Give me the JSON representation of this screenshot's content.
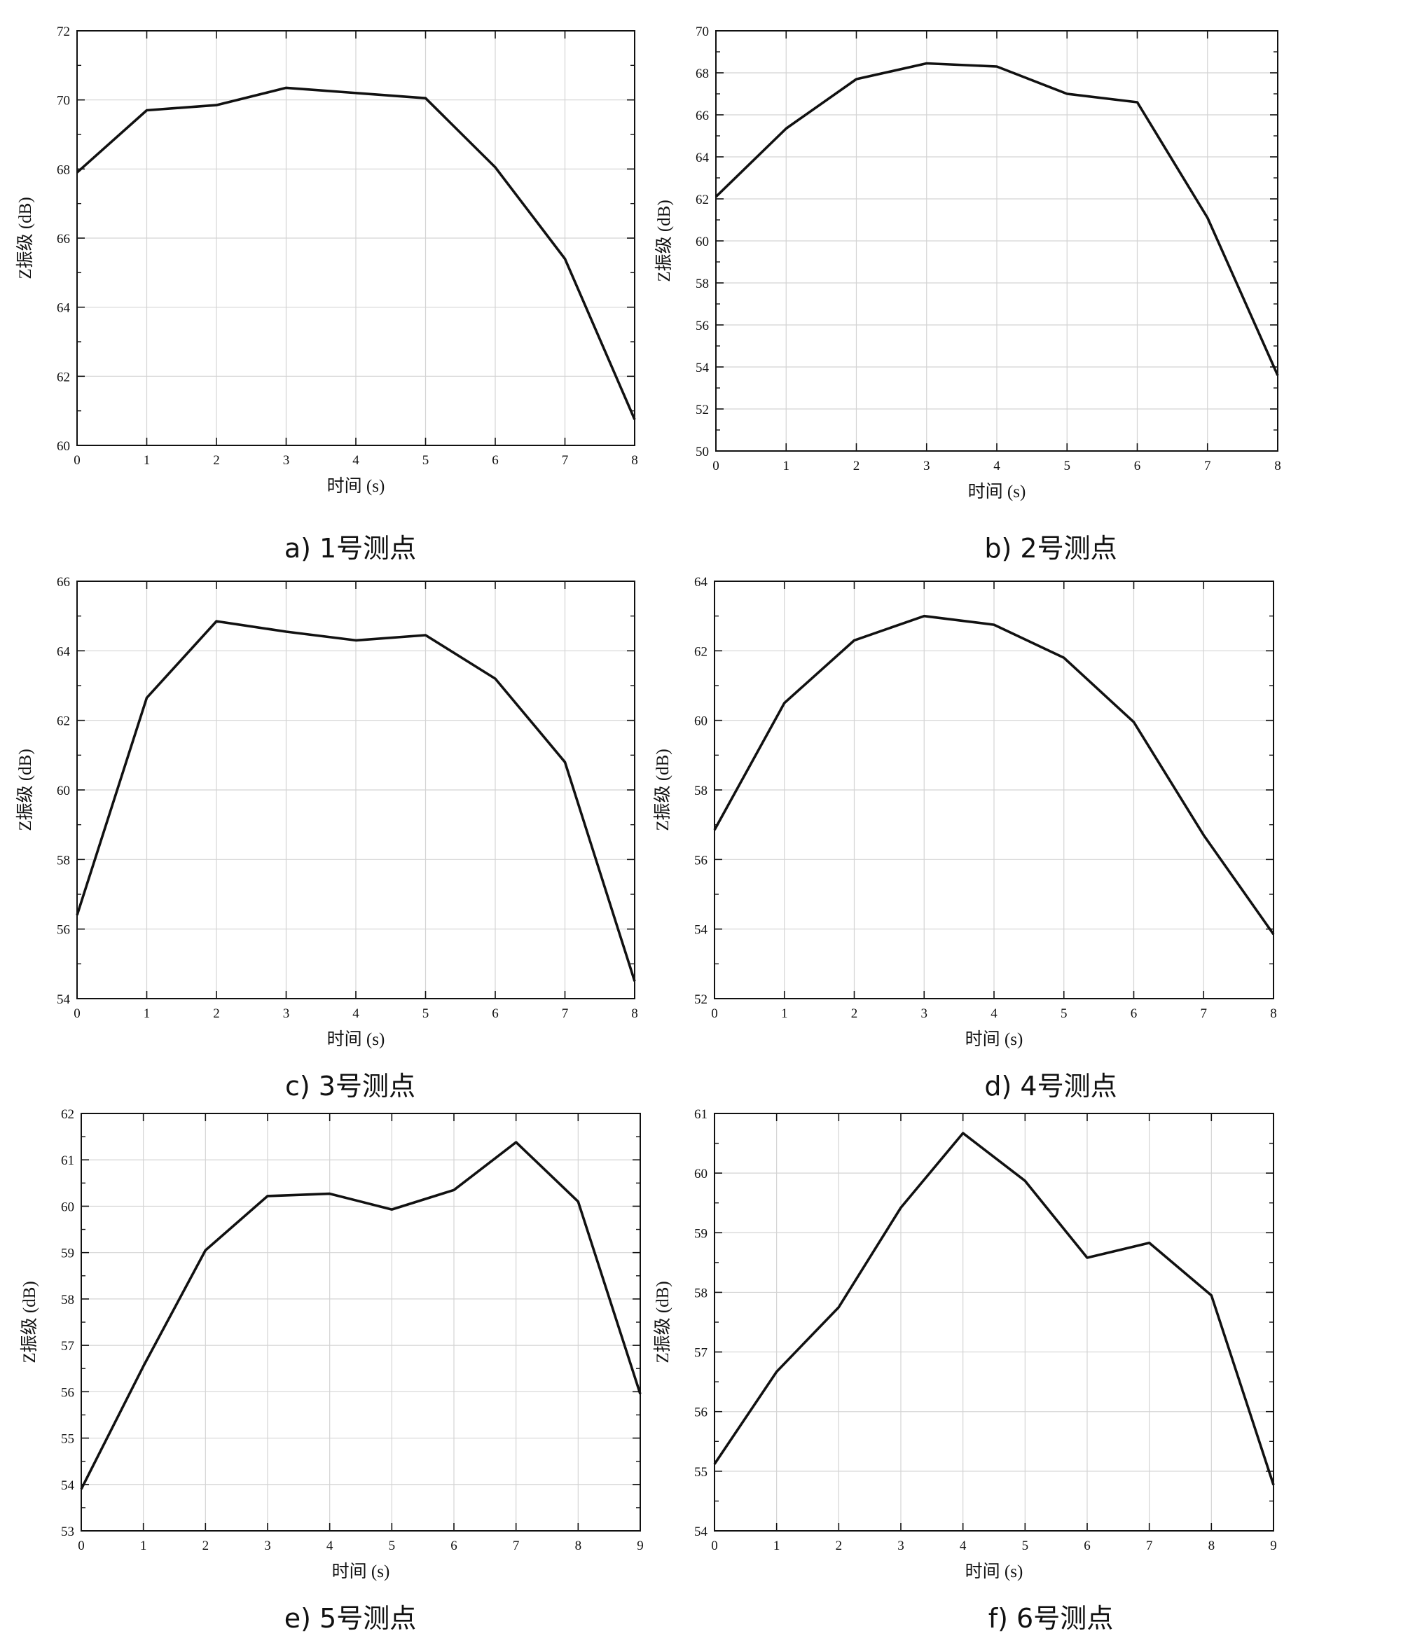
{
  "chart_data": [
    {
      "type": "line",
      "caption": "a) 1号测点",
      "xlabel": "时间 (s)",
      "ylabel": "Z振级 (dB)",
      "xlim": [
        0,
        8
      ],
      "ylim": [
        60,
        72
      ],
      "xticks": [
        0,
        1,
        2,
        3,
        4,
        5,
        6,
        7,
        8
      ],
      "yticks": [
        60,
        62,
        64,
        66,
        68,
        70,
        72
      ],
      "grid": true,
      "series": [
        {
          "x": [
            0,
            1,
            2,
            3,
            5,
            6,
            7,
            8
          ],
          "values": [
            67.9,
            69.7,
            69.85,
            70.35,
            70.05,
            68.05,
            65.4,
            60.75
          ]
        }
      ]
    },
    {
      "type": "line",
      "caption": "b) 2号测点",
      "xlabel": "时间 (s)",
      "ylabel": "Z振级 (dB)",
      "xlim": [
        0,
        8
      ],
      "ylim": [
        50,
        70
      ],
      "xticks": [
        0,
        1,
        2,
        3,
        4,
        5,
        6,
        7,
        8
      ],
      "yticks": [
        50,
        52,
        54,
        56,
        58,
        60,
        62,
        64,
        66,
        68,
        70
      ],
      "grid": true,
      "series": [
        {
          "x": [
            0,
            1,
            2,
            3,
            4,
            5,
            6,
            7,
            8
          ],
          "values": [
            62.1,
            65.35,
            67.7,
            68.45,
            68.3,
            67.0,
            66.6,
            61.1,
            53.6
          ]
        }
      ]
    },
    {
      "type": "line",
      "caption": "c) 3号测点",
      "xlabel": "时间 (s)",
      "ylabel": "Z振级 (dB)",
      "xlim": [
        0,
        8
      ],
      "ylim": [
        54,
        66
      ],
      "xticks": [
        0,
        1,
        2,
        3,
        4,
        5,
        6,
        7,
        8
      ],
      "yticks": [
        54,
        56,
        58,
        60,
        62,
        64,
        66
      ],
      "grid": true,
      "series": [
        {
          "x": [
            0,
            1,
            2,
            3,
            4,
            5,
            6,
            7,
            8
          ],
          "values": [
            56.4,
            62.65,
            64.85,
            64.55,
            64.3,
            64.45,
            63.2,
            60.8,
            54.5
          ]
        }
      ]
    },
    {
      "type": "line",
      "caption": "d) 4号测点",
      "xlabel": "时间 (s)",
      "ylabel": "Z振级 (dB)",
      "xlim": [
        0,
        8
      ],
      "ylim": [
        52,
        64
      ],
      "xticks": [
        0,
        1,
        2,
        3,
        4,
        5,
        6,
        7,
        8
      ],
      "yticks": [
        52,
        54,
        56,
        58,
        60,
        62,
        64
      ],
      "grid": true,
      "series": [
        {
          "x": [
            0,
            1,
            2,
            3,
            4,
            5,
            6,
            7,
            8
          ],
          "values": [
            56.85,
            60.5,
            62.3,
            63.0,
            62.75,
            61.8,
            59.95,
            56.7,
            53.85
          ]
        }
      ]
    },
    {
      "type": "line",
      "caption": "e) 5号测点",
      "xlabel": "时间 (s)",
      "ylabel": "Z振级 (dB)",
      "xlim": [
        0,
        9
      ],
      "ylim": [
        53,
        62
      ],
      "xticks": [
        0,
        1,
        2,
        3,
        4,
        5,
        6,
        7,
        8,
        9
      ],
      "yticks": [
        53,
        54,
        55,
        56,
        57,
        58,
        59,
        60,
        61,
        62
      ],
      "grid": true,
      "series": [
        {
          "x": [
            0,
            1,
            2,
            3,
            4,
            5,
            6,
            7,
            8,
            9
          ],
          "values": [
            53.9,
            56.55,
            59.05,
            60.22,
            60.27,
            59.93,
            60.35,
            61.38,
            60.1,
            55.95
          ]
        }
      ]
    },
    {
      "type": "line",
      "caption": "f) 6号测点",
      "xlabel": "时间 (s)",
      "ylabel": "Z振级 (dB)",
      "xlim": [
        0,
        9
      ],
      "ylim": [
        54,
        61
      ],
      "xticks": [
        0,
        1,
        2,
        3,
        4,
        5,
        6,
        7,
        8,
        9
      ],
      "yticks": [
        54,
        55,
        56,
        57,
        58,
        59,
        60,
        61
      ],
      "grid": true,
      "series": [
        {
          "x": [
            0,
            1,
            2,
            3,
            4,
            5,
            6,
            7,
            8,
            9
          ],
          "values": [
            55.12,
            56.67,
            57.75,
            59.42,
            60.67,
            59.87,
            58.58,
            58.83,
            57.95,
            54.77
          ]
        }
      ]
    }
  ]
}
